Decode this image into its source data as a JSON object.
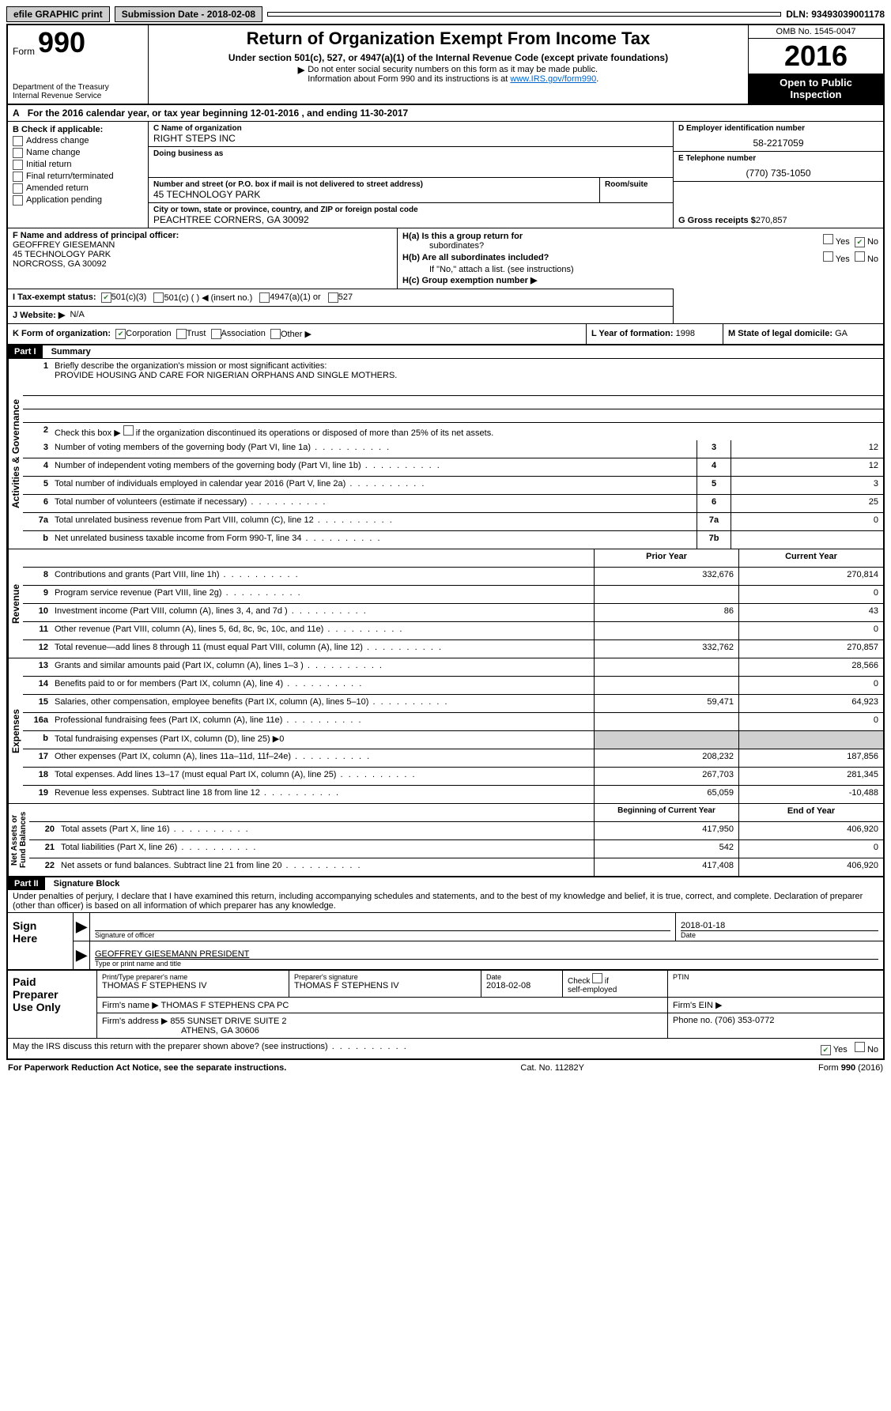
{
  "top": {
    "efile": "efile GRAPHIC print",
    "sub_label": "Submission Date - ",
    "sub_date": "2018-02-08",
    "dln": "DLN: 93493039001178"
  },
  "header": {
    "form_word": "Form",
    "form_num": "990",
    "dept1": "Department of the Treasury",
    "dept2": "Internal Revenue Service",
    "title": "Return of Organization Exempt From Income Tax",
    "sub": "Under section 501(c), 527, or 4947(a)(1) of the Internal Revenue Code (except private foundations)",
    "note1": "Do not enter social security numbers on this form as it may be made public.",
    "note2_pre": "Information about Form 990 and its instructions is at ",
    "note2_link": "www.IRS.gov/form990",
    "omb": "OMB No. 1545-0047",
    "year": "2016",
    "open1": "Open to Public",
    "open2": "Inspection"
  },
  "rowA": {
    "prefix": "A",
    "text": "For the 2016 calendar year, or tax year beginning 12-01-2016   , and ending 11-30-2017"
  },
  "colB": {
    "title": "B Check if applicable:",
    "items": [
      "Address change",
      "Name change",
      "Initial return",
      "Final return/terminated",
      "Amended return",
      "Application pending"
    ]
  },
  "colC": {
    "name_label": "C Name of organization",
    "name": "RIGHT STEPS INC",
    "dba_label": "Doing business as",
    "dba": "",
    "addr_label": "Number and street (or P.O. box if mail is not delivered to street address)",
    "room_label": "Room/suite",
    "addr": "45 TECHNOLOGY PARK",
    "city_label": "City or town, state or province, country, and ZIP or foreign postal code",
    "city": "PEACHTREE CORNERS, GA  30092"
  },
  "colD": {
    "ein_label": "D Employer identification number",
    "ein": "58-2217059",
    "tel_label": "E Telephone number",
    "tel": "(770) 735-1050",
    "gross_label": "G Gross receipts $",
    "gross": "270,857"
  },
  "secF": {
    "label": "F Name and address of principal officer:",
    "l1": "GEOFFREY GIESEMANN",
    "l2": "45 TECHNOLOGY PARK",
    "l3": "NORCROSS, GA  30092"
  },
  "secH": {
    "a": "H(a)  Is this a group return for",
    "a2": "subordinates?",
    "b": "H(b)  Are all subordinates included?",
    "b2": "If \"No,\" attach a list. (see instructions)",
    "c": "H(c)  Group exemption number ▶",
    "yes": "Yes",
    "no": "No"
  },
  "rowI": {
    "label": "I  Tax-exempt status:",
    "o1": "501(c)(3)",
    "o2": "501(c) (   ) ◀ (insert no.)",
    "o3": "4947(a)(1) or",
    "o4": "527"
  },
  "rowJ": {
    "label": "J  Website: ▶",
    "val": "N/A"
  },
  "rowK": {
    "label": "K Form of organization:",
    "o1": "Corporation",
    "o2": "Trust",
    "o3": "Association",
    "o4": "Other ▶"
  },
  "colL": {
    "label": "L Year of formation:",
    "val": "1998"
  },
  "colM": {
    "label": "M State of legal domicile:",
    "val": "GA"
  },
  "part1": {
    "tag": "Part I",
    "title": "Summary",
    "l1": "Briefly describe the organization's mission or most significant activities:",
    "mission": "PROVIDE HOUSING AND CARE FOR NIGERIAN ORPHANS AND SINGLE MOTHERS.",
    "l2": "Check this box ▶         if the organization discontinued its operations or disposed of more than 25% of its net assets.",
    "lines_gov": [
      {
        "n": "3",
        "d": "Number of voting members of the governing body (Part VI, line 1a)",
        "c": "3",
        "v": "12"
      },
      {
        "n": "4",
        "d": "Number of independent voting members of the governing body (Part VI, line 1b)",
        "c": "4",
        "v": "12"
      },
      {
        "n": "5",
        "d": "Total number of individuals employed in calendar year 2016 (Part V, line 2a)",
        "c": "5",
        "v": "3"
      },
      {
        "n": "6",
        "d": "Total number of volunteers (estimate if necessary)",
        "c": "6",
        "v": "25"
      },
      {
        "n": "7a",
        "d": "Total unrelated business revenue from Part VIII, column (C), line 12",
        "c": "7a",
        "v": "0"
      },
      {
        "n": "b",
        "d": "Net unrelated business taxable income from Form 990-T, line 34",
        "c": "7b",
        "v": ""
      }
    ],
    "col_prior": "Prior Year",
    "col_curr": "Current Year",
    "lines_rev": [
      {
        "n": "8",
        "d": "Contributions and grants (Part VIII, line 1h)",
        "p": "332,676",
        "c": "270,814"
      },
      {
        "n": "9",
        "d": "Program service revenue (Part VIII, line 2g)",
        "p": "",
        "c": "0"
      },
      {
        "n": "10",
        "d": "Investment income (Part VIII, column (A), lines 3, 4, and 7d )",
        "p": "86",
        "c": "43"
      },
      {
        "n": "11",
        "d": "Other revenue (Part VIII, column (A), lines 5, 6d, 8c, 9c, 10c, and 11e)",
        "p": "",
        "c": "0"
      },
      {
        "n": "12",
        "d": "Total revenue—add lines 8 through 11 (must equal Part VIII, column (A), line 12)",
        "p": "332,762",
        "c": "270,857"
      }
    ],
    "lines_exp": [
      {
        "n": "13",
        "d": "Grants and similar amounts paid (Part IX, column (A), lines 1–3 )",
        "p": "",
        "c": "28,566"
      },
      {
        "n": "14",
        "d": "Benefits paid to or for members (Part IX, column (A), line 4)",
        "p": "",
        "c": "0"
      },
      {
        "n": "15",
        "d": "Salaries, other compensation, employee benefits (Part IX, column (A), lines 5–10)",
        "p": "59,471",
        "c": "64,923"
      },
      {
        "n": "16a",
        "d": "Professional fundraising fees (Part IX, column (A), line 11e)",
        "p": "",
        "c": "0"
      },
      {
        "n": "b",
        "d": "Total fundraising expenses (Part IX, column (D), line 25) ▶0",
        "p": "grey",
        "c": "grey"
      },
      {
        "n": "17",
        "d": "Other expenses (Part IX, column (A), lines 11a–11d, 11f–24e)",
        "p": "208,232",
        "c": "187,856"
      },
      {
        "n": "18",
        "d": "Total expenses. Add lines 13–17 (must equal Part IX, column (A), line 25)",
        "p": "267,703",
        "c": "281,345"
      },
      {
        "n": "19",
        "d": "Revenue less expenses. Subtract line 18 from line 12",
        "p": "65,059",
        "c": "-10,488"
      }
    ],
    "col_begin": "Beginning of Current Year",
    "col_end": "End of Year",
    "lines_net": [
      {
        "n": "20",
        "d": "Total assets (Part X, line 16)",
        "p": "417,950",
        "c": "406,920"
      },
      {
        "n": "21",
        "d": "Total liabilities (Part X, line 26)",
        "p": "542",
        "c": "0"
      },
      {
        "n": "22",
        "d": "Net assets or fund balances. Subtract line 21 from line 20",
        "p": "417,408",
        "c": "406,920"
      }
    ]
  },
  "part2": {
    "tag": "Part II",
    "title": "Signature Block",
    "decl": "Under penalties of perjury, I declare that I have examined this return, including accompanying schedules and statements, and to the best of my knowledge and belief, it is true, correct, and complete. Declaration of preparer (other than officer) is based on all information of which preparer has any knowledge."
  },
  "sign": {
    "left": "Sign Here",
    "sig_label": "Signature of officer",
    "date_label": "Date",
    "date": "2018-01-18",
    "name": "GEOFFREY GIESEMANN  PRESIDENT",
    "name_label": "Type or print name and title"
  },
  "prep": {
    "left": "Paid Preparer Use Only",
    "r1c1l": "Print/Type preparer's name",
    "r1c1v": "THOMAS F STEPHENS IV",
    "r1c2l": "Preparer's signature",
    "r1c2v": "THOMAS F STEPHENS IV",
    "r1c3l": "Date",
    "r1c3v": "2018-02-08",
    "r1c4": "Check         if self-employed",
    "r1c5l": "PTIN",
    "r2l": "Firm's name     ▶",
    "r2v": "THOMAS F STEPHENS CPA PC",
    "r2r": "Firm's EIN ▶",
    "r3l": "Firm's address ▶",
    "r3v1": "855 SUNSET DRIVE SUITE 2",
    "r3v2": "ATHENS, GA  30606",
    "r3r": "Phone no. (706) 353-0772"
  },
  "discuss": {
    "text": "May the IRS discuss this return with the preparer shown above? (see instructions)",
    "yes": "Yes",
    "no": "No"
  },
  "footer": {
    "left": "For Paperwork Reduction Act Notice, see the separate instructions.",
    "mid": "Cat. No. 11282Y",
    "right": "Form 990 (2016)"
  }
}
